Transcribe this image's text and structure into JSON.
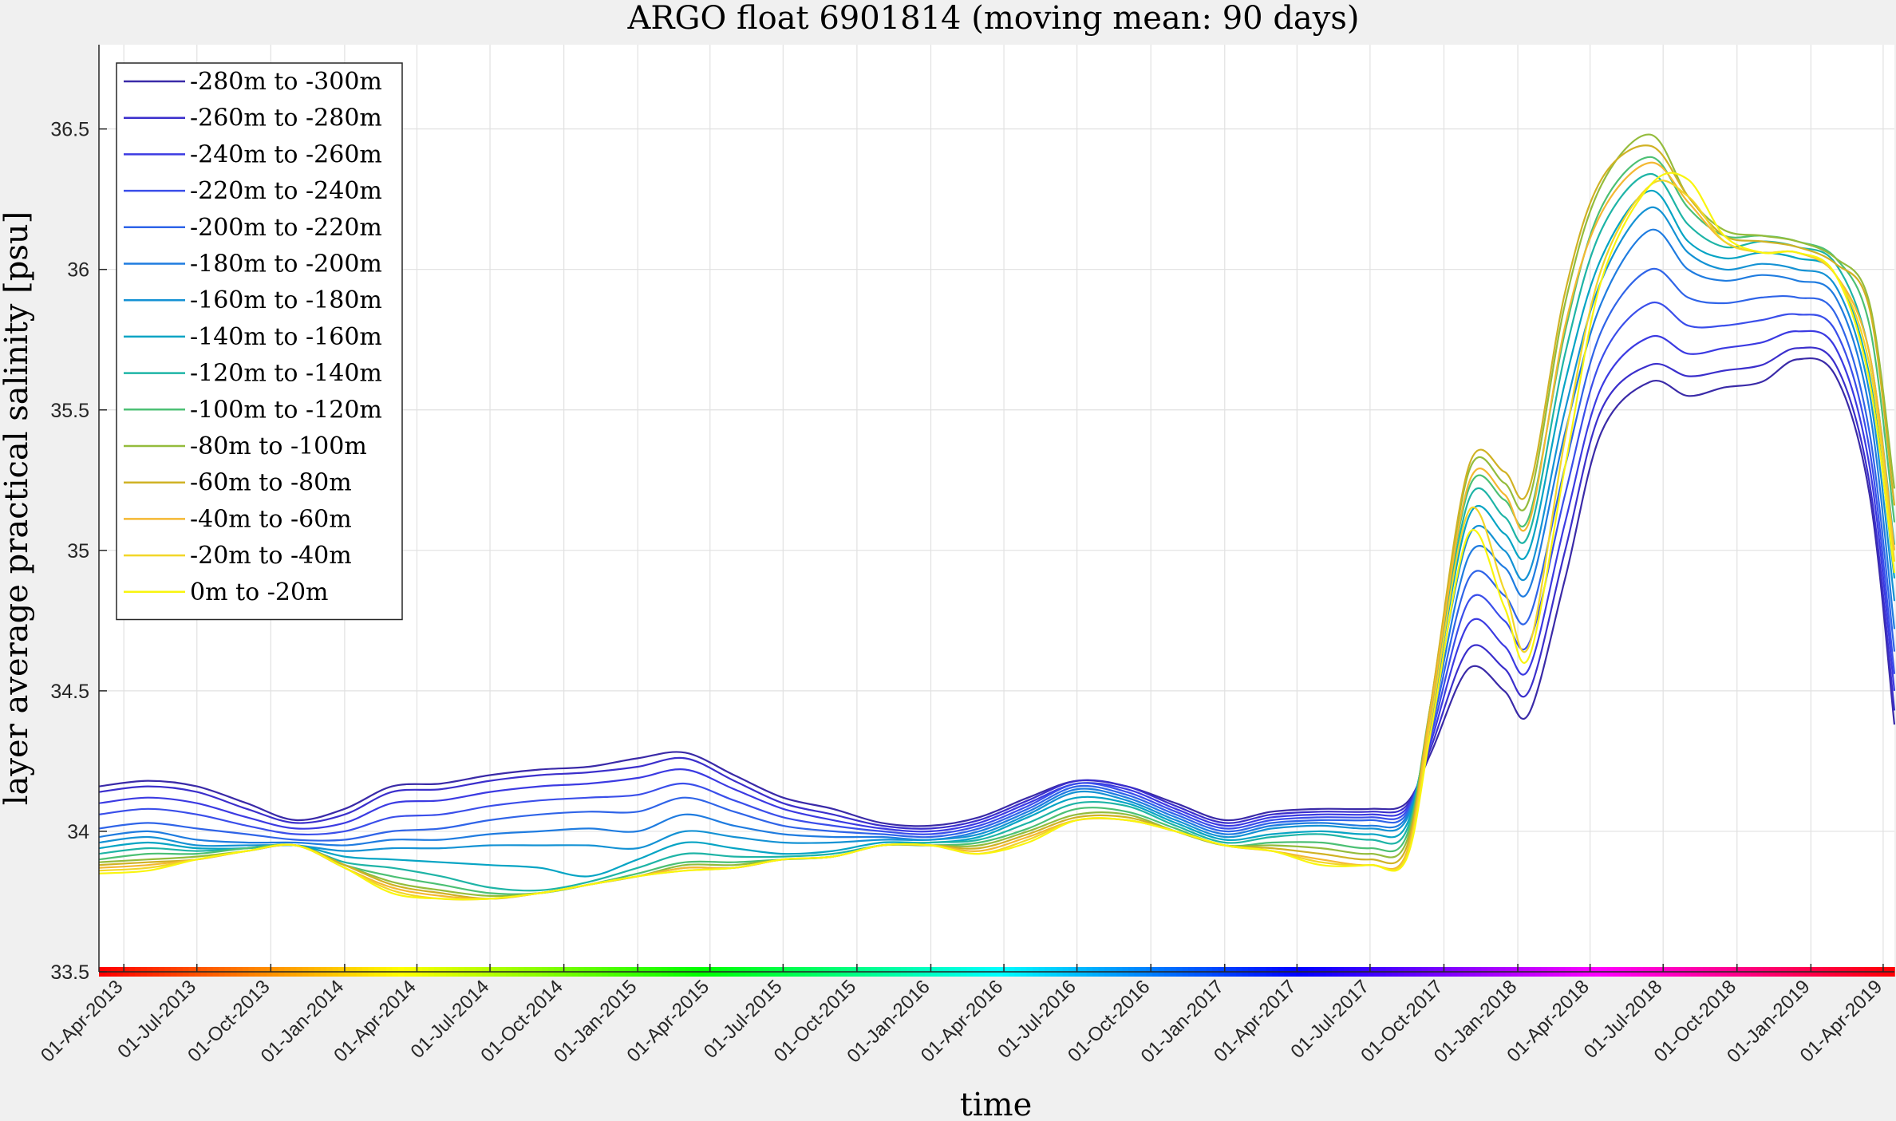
{
  "chart_data": {
    "type": "line",
    "title": "ARGO float 6901814 (moving mean: 90 days)",
    "xlabel": "time",
    "ylabel": "layer average practical salinity [psu]",
    "ylim": [
      33.5,
      36.8
    ],
    "yticks": [
      33.5,
      34,
      34.5,
      35,
      35.5,
      36,
      36.5
    ],
    "ytick_labels": [
      "33.5",
      "34",
      "34.5",
      "35",
      "35.5",
      "36",
      "36.5"
    ],
    "xlim": [
      "2013-03-01",
      "2019-04-15"
    ],
    "xtick_dates": [
      "2013-04-01",
      "2013-07-01",
      "2013-10-01",
      "2014-01-01",
      "2014-04-01",
      "2014-07-01",
      "2014-10-01",
      "2015-01-01",
      "2015-04-01",
      "2015-07-01",
      "2015-10-01",
      "2016-01-01",
      "2016-04-01",
      "2016-07-01",
      "2016-10-01",
      "2017-01-01",
      "2017-04-01",
      "2017-07-01",
      "2017-10-01",
      "2018-01-01",
      "2018-04-01",
      "2018-07-01",
      "2018-10-01",
      "2019-01-01",
      "2019-04-01"
    ],
    "xtick_labels": [
      "01-Apr-2013",
      "01-Jul-2013",
      "01-Oct-2013",
      "01-Jan-2014",
      "01-Apr-2014",
      "01-Jul-2014",
      "01-Oct-2014",
      "01-Jan-2015",
      "01-Apr-2015",
      "01-Jul-2015",
      "01-Oct-2015",
      "01-Jan-2016",
      "01-Apr-2016",
      "01-Jul-2016",
      "01-Oct-2016",
      "01-Jan-2017",
      "01-Apr-2017",
      "01-Jul-2017",
      "01-Oct-2017",
      "01-Jan-2018",
      "01-Apr-2018",
      "01-Jul-2018",
      "01-Oct-2018",
      "01-Jan-2019",
      "01-Apr-2019"
    ],
    "grid": true,
    "legend_position": "top-left",
    "x": [
      "2013-03-01",
      "2013-05-01",
      "2013-07-01",
      "2013-09-01",
      "2013-11-01",
      "2014-01-01",
      "2014-03-01",
      "2014-05-01",
      "2014-07-01",
      "2014-09-01",
      "2014-11-01",
      "2015-01-01",
      "2015-03-01",
      "2015-05-01",
      "2015-07-01",
      "2015-09-01",
      "2015-11-01",
      "2016-01-01",
      "2016-03-01",
      "2016-05-01",
      "2016-07-01",
      "2016-09-01",
      "2016-11-01",
      "2017-01-01",
      "2017-03-01",
      "2017-05-01",
      "2017-07-01",
      "2017-08-15",
      "2017-09-15",
      "2017-11-01",
      "2017-12-15",
      "2018-01-15",
      "2018-03-01",
      "2018-04-15",
      "2018-06-15",
      "2018-08-01",
      "2018-09-15",
      "2018-11-01",
      "2018-12-15",
      "2019-02-01",
      "2019-03-15",
      "2019-04-15"
    ],
    "series": [
      {
        "name": "-280m to -300m",
        "color": "#3a2aa8",
        "values": [
          34.16,
          34.18,
          34.16,
          34.1,
          34.04,
          34.08,
          34.16,
          34.17,
          34.2,
          34.22,
          34.23,
          34.26,
          34.28,
          34.2,
          34.12,
          34.08,
          34.03,
          34.02,
          34.05,
          34.12,
          34.18,
          34.16,
          34.1,
          34.04,
          34.07,
          34.08,
          34.08,
          34.1,
          34.28,
          34.58,
          34.5,
          34.42,
          34.9,
          35.42,
          35.6,
          35.55,
          35.58,
          35.6,
          35.68,
          35.62,
          35.2,
          34.38
        ]
      },
      {
        "name": "-260m to -280m",
        "color": "#3b2fcc",
        "values": [
          34.14,
          34.16,
          34.14,
          34.08,
          34.03,
          34.06,
          34.14,
          34.15,
          34.18,
          34.2,
          34.21,
          34.23,
          34.26,
          34.18,
          34.1,
          34.06,
          34.02,
          34.01,
          34.04,
          34.11,
          34.18,
          34.16,
          34.09,
          34.03,
          34.06,
          34.07,
          34.07,
          34.09,
          34.3,
          34.65,
          34.58,
          34.5,
          35.0,
          35.5,
          35.66,
          35.62,
          35.64,
          35.66,
          35.72,
          35.66,
          35.24,
          34.43
        ]
      },
      {
        "name": "-240m to -260m",
        "color": "#3b3ae2",
        "values": [
          34.1,
          34.12,
          34.1,
          34.05,
          34.01,
          34.03,
          34.1,
          34.11,
          34.14,
          34.16,
          34.17,
          34.19,
          34.22,
          34.15,
          34.08,
          34.04,
          34.01,
          34.0,
          34.03,
          34.1,
          34.17,
          34.15,
          34.08,
          34.02,
          34.05,
          34.06,
          34.06,
          34.08,
          34.32,
          34.74,
          34.66,
          34.58,
          35.1,
          35.58,
          35.76,
          35.7,
          35.72,
          35.74,
          35.78,
          35.72,
          35.3,
          34.5
        ]
      },
      {
        "name": "-220m to -240m",
        "color": "#3a4eea",
        "values": [
          34.06,
          34.08,
          34.06,
          34.02,
          33.99,
          34.0,
          34.05,
          34.06,
          34.09,
          34.11,
          34.12,
          34.13,
          34.17,
          34.11,
          34.05,
          34.02,
          34.0,
          33.99,
          34.02,
          34.09,
          34.17,
          34.14,
          34.07,
          34.01,
          34.04,
          34.05,
          34.05,
          34.07,
          34.34,
          34.82,
          34.75,
          34.67,
          35.2,
          35.68,
          35.88,
          35.8,
          35.8,
          35.82,
          35.84,
          35.78,
          35.36,
          34.56
        ]
      },
      {
        "name": "-200m to -220m",
        "color": "#2f64e8",
        "values": [
          34.01,
          34.03,
          34.01,
          33.99,
          33.97,
          33.97,
          34.0,
          34.01,
          34.04,
          34.06,
          34.07,
          34.07,
          34.12,
          34.07,
          34.02,
          34.0,
          33.99,
          33.98,
          34.01,
          34.08,
          34.16,
          34.13,
          34.06,
          34.0,
          34.03,
          34.04,
          34.04,
          34.06,
          34.36,
          34.9,
          34.84,
          34.76,
          35.3,
          35.78,
          36.0,
          35.9,
          35.88,
          35.9,
          35.9,
          35.84,
          35.42,
          34.64
        ]
      },
      {
        "name": "-180m to -200m",
        "color": "#1f7ce0",
        "values": [
          33.98,
          34.0,
          33.97,
          33.96,
          33.96,
          33.95,
          33.97,
          33.97,
          33.99,
          34.0,
          34.01,
          34.0,
          34.06,
          34.02,
          33.99,
          33.98,
          33.98,
          33.97,
          34.0,
          34.07,
          34.15,
          34.12,
          34.05,
          33.99,
          34.02,
          34.03,
          34.02,
          34.05,
          34.38,
          34.98,
          34.94,
          34.86,
          35.42,
          35.88,
          36.14,
          36.0,
          35.96,
          35.98,
          35.96,
          35.9,
          35.5,
          34.72
        ]
      },
      {
        "name": "-160m to -180m",
        "color": "#1492d4",
        "values": [
          33.96,
          33.98,
          33.95,
          33.95,
          33.95,
          33.93,
          33.94,
          33.94,
          33.95,
          33.95,
          33.95,
          33.94,
          34.0,
          33.98,
          33.96,
          33.96,
          33.97,
          33.97,
          33.99,
          34.06,
          34.14,
          34.11,
          34.04,
          33.98,
          34.01,
          34.02,
          34.01,
          34.04,
          34.4,
          35.05,
          35.0,
          34.92,
          35.5,
          35.96,
          36.22,
          36.06,
          36.0,
          36.02,
          36.0,
          35.94,
          35.56,
          34.82
        ]
      },
      {
        "name": "-140m to -160m",
        "color": "#06a4c4",
        "values": [
          33.94,
          33.96,
          33.94,
          33.94,
          33.95,
          33.91,
          33.9,
          33.89,
          33.88,
          33.87,
          33.84,
          33.9,
          33.96,
          33.94,
          33.92,
          33.93,
          33.96,
          33.96,
          33.98,
          34.05,
          34.12,
          34.1,
          34.03,
          33.97,
          33.99,
          34.0,
          33.99,
          34.02,
          34.42,
          35.12,
          35.06,
          35.0,
          35.6,
          36.04,
          36.28,
          36.1,
          36.04,
          36.06,
          36.04,
          35.98,
          35.62,
          34.9
        ]
      },
      {
        "name": "-120m to -140m",
        "color": "#1eb4a6",
        "values": [
          33.92,
          33.94,
          33.93,
          33.94,
          33.95,
          33.89,
          33.87,
          33.84,
          33.8,
          33.79,
          33.82,
          33.87,
          33.92,
          33.91,
          33.91,
          33.92,
          33.95,
          33.96,
          33.97,
          34.03,
          34.1,
          34.09,
          34.02,
          33.96,
          33.98,
          33.99,
          33.97,
          34.0,
          34.44,
          35.18,
          35.12,
          35.06,
          35.7,
          36.14,
          36.34,
          36.16,
          36.08,
          36.1,
          36.08,
          36.02,
          35.7,
          35.02
        ]
      },
      {
        "name": "-100m to -120m",
        "color": "#4cc074",
        "values": [
          33.9,
          33.92,
          33.92,
          33.94,
          33.95,
          33.88,
          33.84,
          33.81,
          33.78,
          33.78,
          33.81,
          33.85,
          33.89,
          33.89,
          33.9,
          33.91,
          33.95,
          33.95,
          33.96,
          34.01,
          34.08,
          34.07,
          34.01,
          33.95,
          33.96,
          33.96,
          33.94,
          33.98,
          34.46,
          35.22,
          35.18,
          35.12,
          35.78,
          36.22,
          36.4,
          36.22,
          36.12,
          36.12,
          36.1,
          36.04,
          35.8,
          35.1
        ]
      },
      {
        "name": "-80m to -100m",
        "color": "#94bc3c",
        "values": [
          33.89,
          33.9,
          33.91,
          33.93,
          33.95,
          33.88,
          33.82,
          33.79,
          33.77,
          33.78,
          33.81,
          33.84,
          33.88,
          33.88,
          33.9,
          33.91,
          33.95,
          33.95,
          33.95,
          34.0,
          34.06,
          34.06,
          34.0,
          33.95,
          33.95,
          33.94,
          33.92,
          33.96,
          34.46,
          35.28,
          35.24,
          35.18,
          35.88,
          36.3,
          36.48,
          36.26,
          36.14,
          36.12,
          36.1,
          36.04,
          35.88,
          35.22
        ]
      },
      {
        "name": "-60m to -80m",
        "color": "#d0b224",
        "values": [
          33.88,
          33.89,
          33.9,
          33.93,
          33.95,
          33.88,
          33.81,
          33.78,
          33.76,
          33.78,
          33.81,
          33.84,
          33.87,
          33.87,
          33.9,
          33.91,
          33.95,
          33.95,
          33.94,
          33.99,
          34.05,
          34.05,
          34.0,
          33.95,
          33.94,
          33.92,
          33.9,
          33.94,
          34.46,
          35.3,
          35.28,
          35.22,
          35.92,
          36.32,
          36.44,
          36.26,
          36.12,
          36.1,
          36.08,
          36.02,
          35.86,
          35.16
        ]
      },
      {
        "name": "-40m to -60m",
        "color": "#f4b832",
        "values": [
          33.87,
          33.88,
          33.9,
          33.93,
          33.95,
          33.87,
          33.8,
          33.77,
          33.76,
          33.78,
          33.81,
          33.84,
          33.87,
          33.87,
          33.9,
          33.91,
          33.95,
          33.95,
          33.93,
          33.98,
          34.04,
          34.04,
          34.0,
          33.95,
          33.93,
          33.9,
          33.88,
          33.92,
          34.44,
          35.24,
          35.2,
          35.1,
          35.8,
          36.2,
          36.38,
          36.24,
          36.1,
          36.06,
          36.06,
          35.98,
          35.7,
          35.0
        ]
      },
      {
        "name": "-20m to -40m",
        "color": "#f2d628",
        "values": [
          33.86,
          33.87,
          33.9,
          33.93,
          33.95,
          33.87,
          33.79,
          33.76,
          33.76,
          33.78,
          33.81,
          33.84,
          33.86,
          33.87,
          33.9,
          33.91,
          33.95,
          33.95,
          33.92,
          33.97,
          34.04,
          34.04,
          34.0,
          33.95,
          33.93,
          33.89,
          33.88,
          33.91,
          34.4,
          35.14,
          34.86,
          34.66,
          35.4,
          36.0,
          36.3,
          36.26,
          36.1,
          36.06,
          36.06,
          35.98,
          35.66,
          34.96
        ]
      },
      {
        "name": "0m to -20m",
        "color": "#f9f50e",
        "values": [
          33.85,
          33.86,
          33.9,
          33.93,
          33.95,
          33.87,
          33.78,
          33.76,
          33.76,
          33.78,
          33.81,
          33.84,
          33.86,
          33.87,
          33.9,
          33.91,
          33.95,
          33.95,
          33.92,
          33.96,
          34.04,
          34.04,
          34.0,
          33.95,
          33.93,
          33.88,
          33.88,
          33.9,
          34.36,
          35.06,
          34.8,
          34.62,
          35.3,
          35.96,
          36.3,
          36.32,
          36.12,
          36.06,
          36.06,
          35.98,
          35.6,
          34.92
        ]
      }
    ]
  }
}
